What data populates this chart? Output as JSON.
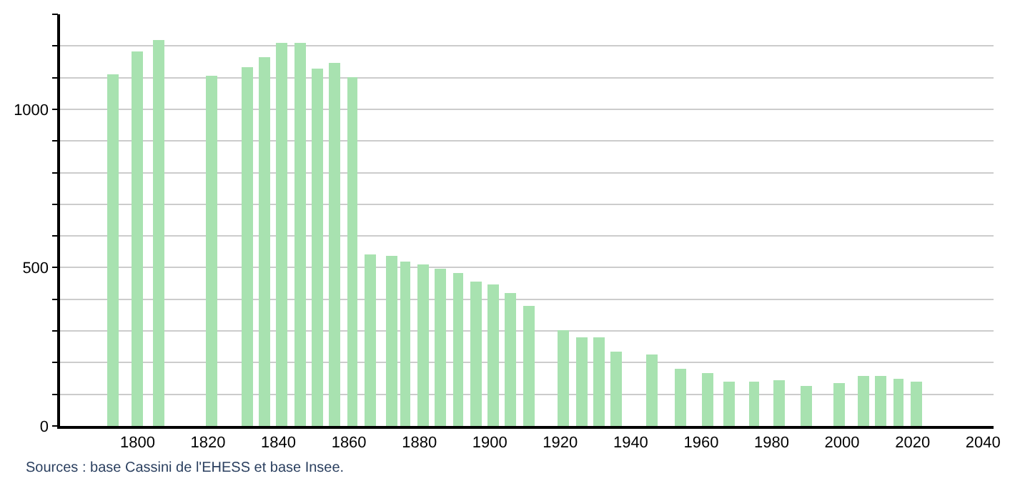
{
  "chart_data": {
    "type": "bar",
    "x": [
      1793,
      1800,
      1806,
      1821,
      1831,
      1836,
      1841,
      1846,
      1851,
      1856,
      1861,
      1866,
      1872,
      1876,
      1881,
      1886,
      1891,
      1896,
      1901,
      1906,
      1911,
      1921,
      1926,
      1931,
      1936,
      1946,
      1954,
      1962,
      1968,
      1975,
      1982,
      1990,
      1999,
      2006,
      2011,
      2016,
      2021
    ],
    "values": [
      1111,
      1183,
      1218,
      1106,
      1134,
      1165,
      1209,
      1209,
      1128,
      1147,
      1100,
      542,
      535,
      521,
      508,
      497,
      485,
      458,
      445,
      418,
      379,
      301,
      279,
      279,
      237,
      225,
      180,
      165,
      138,
      138,
      145,
      126,
      135,
      157,
      157,
      147,
      139
    ],
    "color": "#a8e2b0",
    "xlim": [
      1778,
      2043
    ],
    "xticks": [
      1800,
      1820,
      1840,
      1860,
      1880,
      1900,
      1920,
      1940,
      1960,
      1980,
      2000,
      2020,
      2040
    ],
    "ylim": [
      0,
      1300
    ],
    "yticks": [
      0,
      {
        "value": 100,
        "label": null
      },
      {
        "value": 200,
        "label": null
      },
      {
        "value": 300,
        "label": null
      },
      {
        "value": 400,
        "label": null
      },
      500,
      {
        "value": 600,
        "label": null
      },
      {
        "value": 700,
        "label": null
      },
      {
        "value": 800,
        "label": null
      },
      {
        "value": 900,
        "label": null
      },
      1000,
      {
        "value": 1100,
        "label": null
      },
      {
        "value": 1200,
        "label": null
      },
      {
        "value": 1300,
        "label": null
      }
    ],
    "grid": "y",
    "annotations": [
      "Sources : base Cassini de l'EHESS et base Insee."
    ]
  }
}
